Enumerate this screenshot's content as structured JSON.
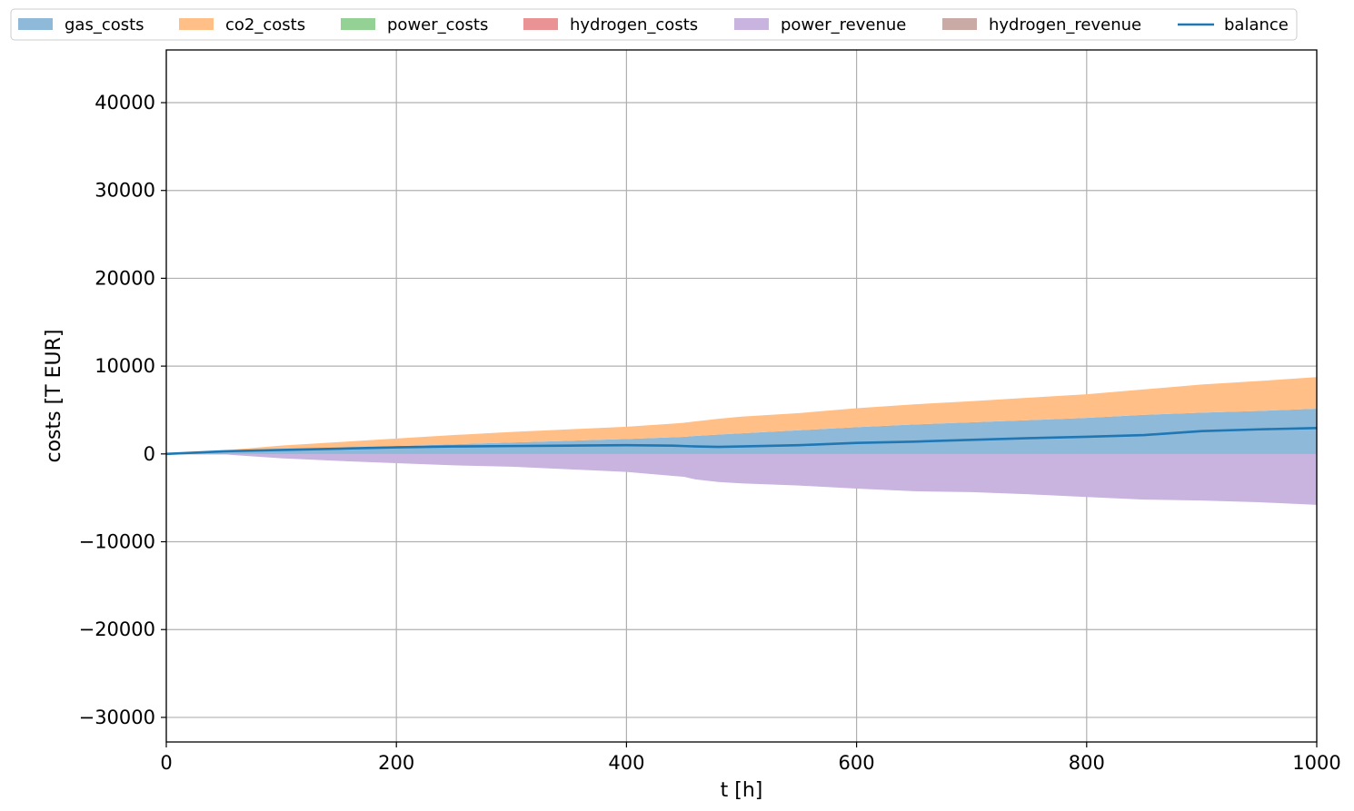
{
  "chart_data": {
    "type": "area",
    "xlabel": "t [h]",
    "ylabel": "costs [T EUR]",
    "xlim": [
      0,
      1000
    ],
    "ylim": [
      -32800,
      46000
    ],
    "xticks": [
      0,
      200,
      400,
      600,
      800,
      1000
    ],
    "xtick_labels": [
      "0",
      "200",
      "400",
      "600",
      "800",
      "1000"
    ],
    "yticks": [
      40000,
      30000,
      20000,
      10000,
      0,
      -10000,
      -20000,
      -30000
    ],
    "ytick_labels": [
      "40000",
      "30000",
      "20000",
      "10000",
      "0",
      "−10000",
      "−20000",
      "−30000"
    ],
    "grid": true,
    "legend": {
      "placement": "top",
      "entries": [
        {
          "label": "gas_costs",
          "kind": "patch",
          "color": "#8fb9d9"
        },
        {
          "label": "co2_costs",
          "kind": "patch",
          "color": "#ffbf86"
        },
        {
          "label": "power_costs",
          "kind": "patch",
          "color": "#94d194"
        },
        {
          "label": "hydrogen_costs",
          "kind": "patch",
          "color": "#e99394"
        },
        {
          "label": "power_revenue",
          "kind": "patch",
          "color": "#c9b3df"
        },
        {
          "label": "hydrogen_revenue",
          "kind": "patch",
          "color": "#c9aaa4"
        },
        {
          "label": "balance",
          "kind": "line",
          "color": "#1f77b4"
        }
      ]
    },
    "x": [
      0,
      50,
      100,
      150,
      200,
      250,
      300,
      350,
      400,
      440,
      450,
      460,
      480,
      500,
      550,
      600,
      650,
      700,
      750,
      800,
      850,
      900,
      950,
      1000
    ],
    "series": [
      {
        "name": "gas_costs",
        "stack": "positive",
        "color": "#8fb9d9",
        "values": [
          0,
          250,
          500,
          700,
          900,
          1100,
          1300,
          1500,
          1700,
          1900,
          1950,
          2050,
          2200,
          2350,
          2700,
          3050,
          3350,
          3600,
          3850,
          4100,
          4450,
          4700,
          4900,
          5150
        ]
      },
      {
        "name": "co2_costs",
        "stack": "positive",
        "color": "#ffbf86",
        "values": [
          0,
          150,
          450,
          650,
          850,
          1050,
          1200,
          1300,
          1400,
          1550,
          1600,
          1650,
          1800,
          1900,
          1950,
          2150,
          2300,
          2400,
          2550,
          2700,
          2900,
          3200,
          3400,
          3600
        ]
      },
      {
        "name": "power_costs",
        "stack": "positive",
        "color": "#94d194",
        "values": [
          0,
          0,
          0,
          0,
          0,
          0,
          0,
          0,
          0,
          0,
          0,
          0,
          0,
          0,
          0,
          0,
          0,
          0,
          0,
          0,
          0,
          0,
          0,
          0
        ]
      },
      {
        "name": "hydrogen_costs",
        "stack": "positive",
        "color": "#e99394",
        "values": [
          0,
          0,
          0,
          0,
          0,
          0,
          0,
          0,
          0,
          0,
          0,
          0,
          0,
          0,
          0,
          0,
          0,
          0,
          0,
          0,
          0,
          0,
          0,
          0
        ]
      },
      {
        "name": "power_revenue",
        "stack": "negative",
        "color": "#c9b3df",
        "values": [
          0,
          -50,
          -500,
          -800,
          -1050,
          -1300,
          -1450,
          -1750,
          -2050,
          -2500,
          -2600,
          -2900,
          -3200,
          -3350,
          -3600,
          -3950,
          -4250,
          -4350,
          -4600,
          -4900,
          -5200,
          -5300,
          -5500,
          -5800
        ]
      },
      {
        "name": "hydrogen_revenue",
        "stack": "negative",
        "color": "#c9aaa4",
        "values": [
          0,
          0,
          0,
          0,
          0,
          0,
          0,
          0,
          0,
          0,
          0,
          0,
          0,
          0,
          0,
          0,
          0,
          0,
          0,
          0,
          0,
          0,
          0,
          0
        ]
      },
      {
        "name": "balance",
        "kind": "line",
        "color": "#1f77b4",
        "values": [
          0,
          300,
          450,
          600,
          750,
          850,
          900,
          950,
          1000,
          950,
          900,
          850,
          800,
          850,
          1000,
          1250,
          1400,
          1600,
          1800,
          1950,
          2150,
          2600,
          2800,
          2950
        ]
      }
    ]
  }
}
